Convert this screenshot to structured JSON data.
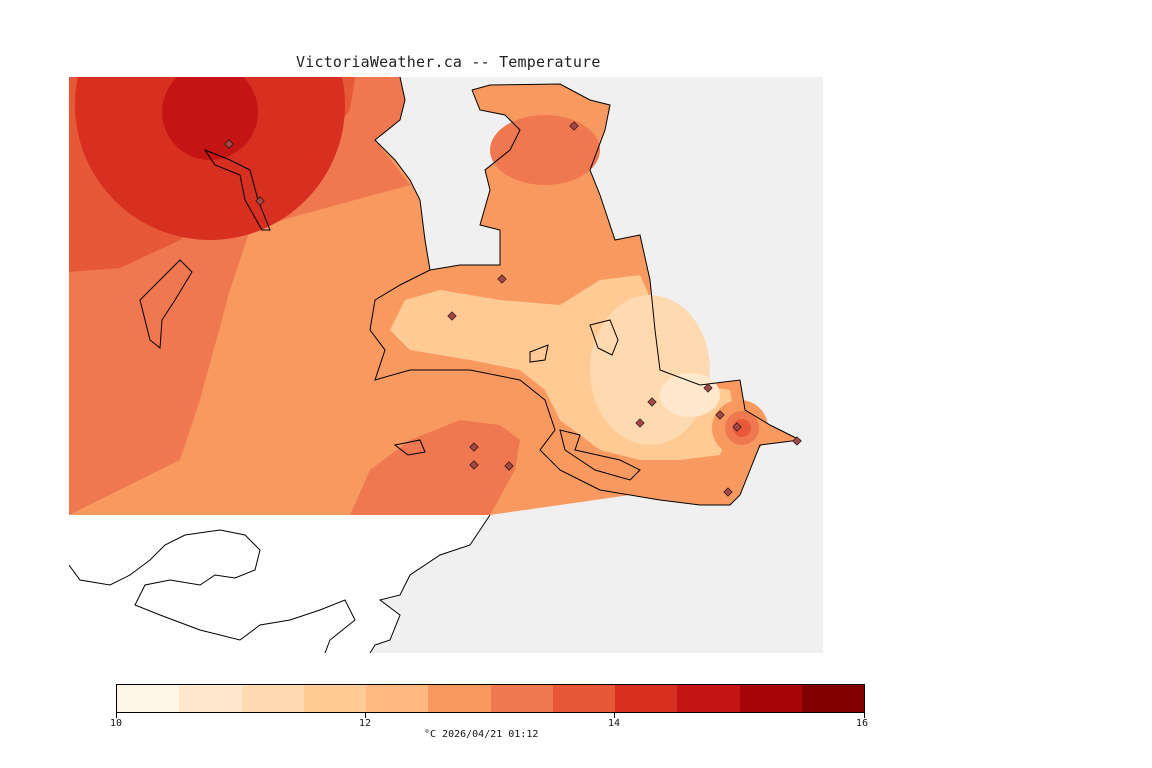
{
  "title": "VictoriaWeather.ca -- Temperature",
  "colors": {
    "water": "#f0f0f0",
    "outside": "#ffffff",
    "coastline": "#000000",
    "station_marker": "#a04848"
  },
  "legend": {
    "bins": [
      "#fff4e8",
      "#ffe8cc",
      "#ffdab0",
      "#ffca94",
      "#ffb880",
      "#f89a60",
      "#f07850",
      "#e65838",
      "#d83020",
      "#c41414",
      "#a80606",
      "#800000"
    ],
    "tick_labels": [
      "10",
      "12",
      "14",
      "16"
    ],
    "caption": "°C  2026/04/21 01:12"
  }
}
